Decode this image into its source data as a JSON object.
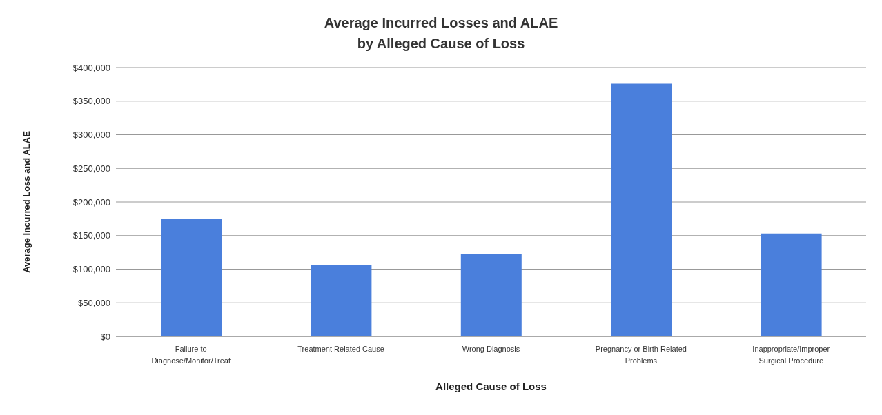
{
  "chart_data": {
    "type": "bar",
    "title": "Average Incurred Losses and ALAE\nby Alleged Cause of Loss",
    "xlabel": "Alleged Cause of Loss",
    "ylabel": "Average Incurred Loss and ALAE",
    "categories": [
      "Failure to Diagnose/Monitor/Treat",
      "Treatment Related Cause",
      "Wrong Diagnosis",
      "Pregnancy or Birth Related Problems",
      "Inappropriate/Improper Surgical Procedure"
    ],
    "values": [
      175000,
      106000,
      122000,
      376000,
      153000
    ],
    "color": "#4a7fdc",
    "ylim": [
      0,
      400000
    ],
    "yticks": [
      {
        "value": 0,
        "label": "$0"
      },
      {
        "value": 50000,
        "label": "$50,000"
      },
      {
        "value": 100000,
        "label": "$100,000"
      },
      {
        "value": 150000,
        "label": "$150,000"
      },
      {
        "value": 200000,
        "label": "$200,000"
      },
      {
        "value": 250000,
        "label": "$250,000"
      },
      {
        "value": 300000,
        "label": "$300,000"
      },
      {
        "value": 350000,
        "label": "$350,000"
      },
      {
        "value": 400000,
        "label": "$400,000"
      }
    ],
    "grid": "y"
  }
}
